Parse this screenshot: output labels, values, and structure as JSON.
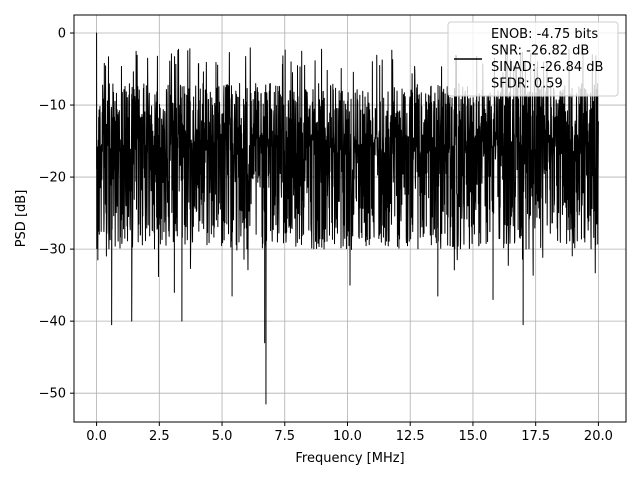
{
  "chart_data": {
    "type": "line",
    "title": "",
    "xlabel": "Frequency [MHz]",
    "ylabel": "PSD [dB]",
    "xlim": [
      -0.9,
      21.1
    ],
    "ylim": [
      -54,
      2.5
    ],
    "x_ticks": [
      0.0,
      2.5,
      5.0,
      7.5,
      10.0,
      12.5,
      15.0,
      17.5,
      20.0
    ],
    "x_tick_labels": [
      "0.0",
      "2.5",
      "5.0",
      "7.5",
      "10.0",
      "12.5",
      "15.0",
      "17.5",
      "20.0"
    ],
    "y_ticks": [
      0,
      -10,
      -20,
      -30,
      -40,
      -50
    ],
    "y_tick_labels": [
      "0",
      "−10",
      "−20",
      "−30",
      "−40",
      "−50"
    ],
    "grid": true,
    "legend_position": "top-right",
    "series": [
      {
        "name": "",
        "color": "#000000",
        "x_range": [
          0.0,
          20.0
        ],
        "description": "dense noise-like spectrum, mostly between about -5 and -25 dB",
        "notable_points": [
          {
            "x": 0.0,
            "y": 0.0
          },
          {
            "x": 0.05,
            "y": -31.5
          },
          {
            "x": 0.6,
            "y": -40.5
          },
          {
            "x": 1.4,
            "y": -40.0
          },
          {
            "x": 3.4,
            "y": -40.0
          },
          {
            "x": 3.1,
            "y": -36.0
          },
          {
            "x": 5.4,
            "y": -36.5
          },
          {
            "x": 6.7,
            "y": -43.0
          },
          {
            "x": 6.75,
            "y": -51.5
          },
          {
            "x": 10.1,
            "y": -35.0
          },
          {
            "x": 13.6,
            "y": -36.5
          },
          {
            "x": 15.8,
            "y": -37.0
          },
          {
            "x": 17.0,
            "y": -40.5
          }
        ],
        "envelope_top": -3.0,
        "envelope_bottom": -28.0
      }
    ],
    "legend": {
      "lines": [
        "ENOB: -4.75 bits",
        "SNR: -26.82 dB",
        "SINAD: -26.84 dB",
        "SFDR: 0.59"
      ]
    }
  }
}
